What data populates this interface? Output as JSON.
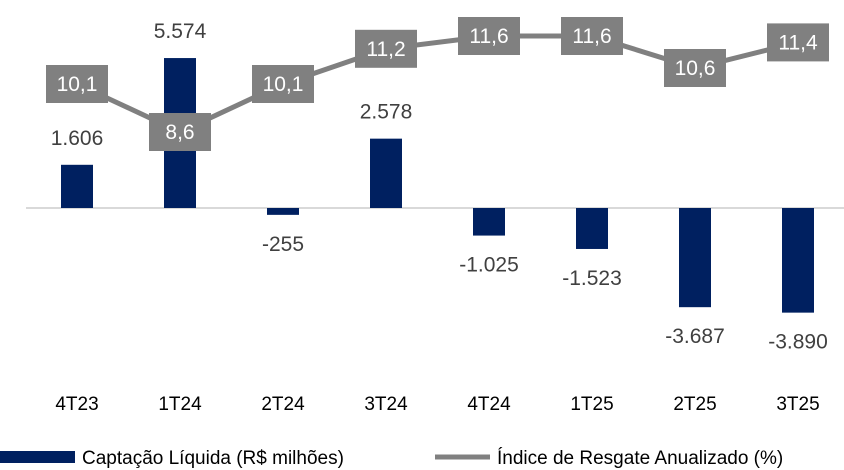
{
  "chart_data": {
    "type": "bar+line",
    "categories": [
      "4T23",
      "1T24",
      "2T24",
      "3T24",
      "4T24",
      "1T25",
      "2T25",
      "3T25"
    ],
    "series": [
      {
        "name": "Captação Líquida (R$ milhões)",
        "type": "bar",
        "color": "#002060",
        "values": [
          1606,
          5574,
          -255,
          2578,
          -1025,
          -1523,
          -3687,
          -3890
        ],
        "labels": [
          "1.606",
          "5.574",
          "-255",
          "2.578",
          "-1.025",
          "-1.523",
          "-3.687",
          "-3.890"
        ]
      },
      {
        "name": "Índice de Resgate Anualizado (%)",
        "type": "line",
        "color": "#808080",
        "values": [
          10.1,
          8.6,
          10.1,
          11.2,
          11.6,
          11.6,
          10.6,
          11.4
        ],
        "labels": [
          "10,1",
          "8,6",
          "10,1",
          "11,2",
          "11,6",
          "11,6",
          "10,6",
          "11,4"
        ]
      }
    ],
    "legend": "bottom",
    "grid": false
  }
}
